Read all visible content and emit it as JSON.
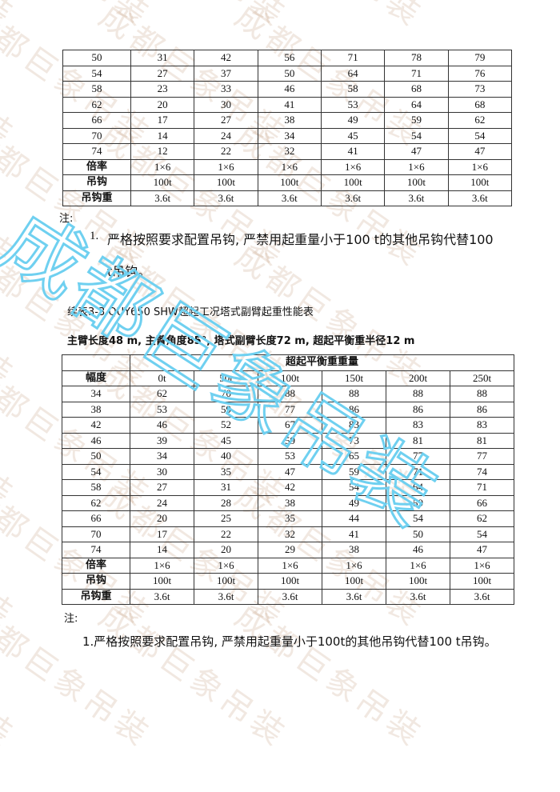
{
  "watermark": {
    "text": "成都巨象吊装",
    "color_faint": "#be9678",
    "color_big": "#6fd0f0"
  },
  "table1": {
    "rows": [
      [
        "50",
        "31",
        "42",
        "56",
        "71",
        "78",
        "79"
      ],
      [
        "54",
        "27",
        "37",
        "50",
        "64",
        "71",
        "76"
      ],
      [
        "58",
        "23",
        "33",
        "46",
        "58",
        "68",
        "73"
      ],
      [
        "62",
        "20",
        "30",
        "41",
        "53",
        "64",
        "68"
      ],
      [
        "66",
        "17",
        "27",
        "38",
        "49",
        "59",
        "62"
      ],
      [
        "70",
        "14",
        "24",
        "34",
        "45",
        "54",
        "54"
      ],
      [
        "74",
        "12",
        "22",
        "32",
        "41",
        "47",
        "47"
      ]
    ],
    "footer_rows": [
      [
        "倍率",
        "1×6",
        "1×6",
        "1×6",
        "1×6",
        "1×6",
        "1×6"
      ],
      [
        "吊钩",
        "100t",
        "100t",
        "100t",
        "100t",
        "100t",
        "100t"
      ],
      [
        "吊钩重",
        "3.6t",
        "3.6t",
        "3.6t",
        "3.6t",
        "3.6t",
        "3.6t"
      ]
    ]
  },
  "note1": {
    "label": "注:",
    "item_number": "1.",
    "line1": "严格按照要求配置吊钩, 严禁用起重量小于100 t的其他吊钩代替100",
    "line2": "t吊钩。"
  },
  "table2_caption": "续表3-3 QUY650 SHW超起工况塔式副臂起重性能表",
  "table2_subtitle": "主臂长度48 m, 主臂角度85°, 塔式副臂长度72 m, 超起平衡重半径12 m",
  "table2": {
    "group_header": "超起平衡重重量",
    "row_header": "幅度",
    "columns": [
      "0t",
      "50t",
      "100t",
      "150t",
      "200t",
      "250t"
    ],
    "rows": [
      [
        "34",
        "62",
        "70",
        "88",
        "88",
        "88",
        "88"
      ],
      [
        "38",
        "53",
        "59",
        "77",
        "86",
        "86",
        "86"
      ],
      [
        "42",
        "46",
        "52",
        "67",
        "83",
        "83",
        "83"
      ],
      [
        "46",
        "39",
        "45",
        "59",
        "73",
        "81",
        "81"
      ],
      [
        "50",
        "34",
        "40",
        "53",
        "65",
        "77",
        "77"
      ],
      [
        "54",
        "30",
        "35",
        "47",
        "59",
        "71",
        "74"
      ],
      [
        "58",
        "27",
        "31",
        "42",
        "54",
        "64",
        "71"
      ],
      [
        "62",
        "24",
        "28",
        "38",
        "49",
        "59",
        "66"
      ],
      [
        "66",
        "20",
        "25",
        "35",
        "44",
        "54",
        "62"
      ],
      [
        "70",
        "17",
        "22",
        "32",
        "41",
        "50",
        "54"
      ],
      [
        "74",
        "14",
        "20",
        "29",
        "38",
        "46",
        "47"
      ]
    ],
    "footer_rows": [
      [
        "倍率",
        "1×6",
        "1×6",
        "1×6",
        "1×6",
        "1×6",
        "1×6"
      ],
      [
        "吊钩",
        "100t",
        "100t",
        "100t",
        "100t",
        "100t",
        "100t"
      ],
      [
        "吊钩重",
        "3.6t",
        "3.6t",
        "3.6t",
        "3.6t",
        "3.6t",
        "3.6t"
      ]
    ]
  },
  "note2": {
    "label": "注:",
    "line1": "1.严格按照要求配置吊钩, 严禁用起重量小于100t的其他吊钩代替100 t吊钩。"
  }
}
